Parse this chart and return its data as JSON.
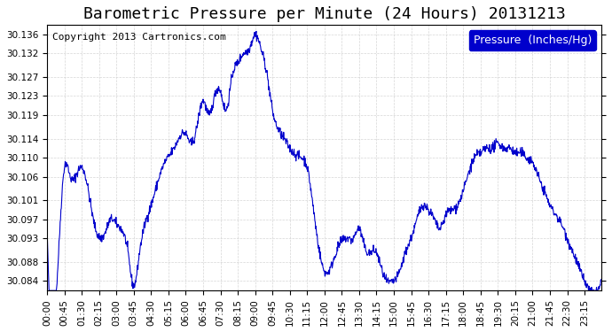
{
  "title": "Barometric Pressure per Minute (24 Hours) 20131213",
  "copyright_text": "Copyright 2013 Cartronics.com",
  "legend_label": "Pressure  (Inches/Hg)",
  "line_color": "#0000cc",
  "background_color": "#ffffff",
  "plot_bg_color": "#ffffff",
  "grid_color": "#cccccc",
  "ylim": [
    30.082,
    30.138
  ],
  "yticks": [
    30.084,
    30.088,
    30.093,
    30.097,
    30.101,
    30.106,
    30.11,
    30.114,
    30.119,
    30.123,
    30.127,
    30.132,
    30.136
  ],
  "xtick_labels": [
    "00:00",
    "00:45",
    "01:30",
    "02:15",
    "03:00",
    "03:45",
    "04:30",
    "05:15",
    "06:00",
    "06:45",
    "07:30",
    "08:15",
    "09:00",
    "09:45",
    "10:30",
    "11:15",
    "12:00",
    "12:45",
    "13:30",
    "14:15",
    "15:00",
    "15:45",
    "16:30",
    "17:15",
    "18:00",
    "18:45",
    "19:30",
    "20:15",
    "21:00",
    "21:45",
    "22:30",
    "23:15"
  ],
  "title_fontsize": 13,
  "tick_fontsize": 7.5,
  "legend_fontsize": 9,
  "copyright_fontsize": 8
}
